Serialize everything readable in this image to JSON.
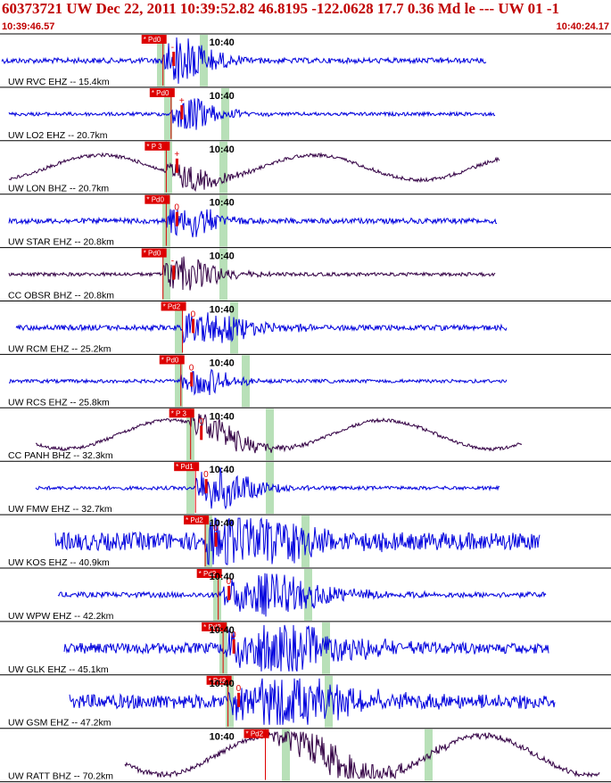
{
  "header": {
    "title": "60373721 UW Dec 22, 2011 10:39:52.82   46.8195 -122.0628 17.7 0.36 Md le --- UW 01   -1",
    "time_start": "10:39:46.57",
    "time_end": "10:40:24.17"
  },
  "colors": {
    "header": "#c00000",
    "short_period": "#0000dd",
    "broadband": "#330044",
    "pick": "#dd0000",
    "window": "#b8e0b8"
  },
  "chart_data": {
    "type": "line",
    "title": "60373721 UW Dec 22, 2011 10:39:52.82   46.8195 -122.0628 17.7 0.36 Md le --- UW 01   -1",
    "x_range": [
      "10:39:46.57",
      "10:40:24.17"
    ],
    "tick_label": "10:40",
    "series": [
      {
        "name": "UW RVC EHZ -- 15.4km",
        "channel": "EHZ",
        "p_label": "Pd0",
        "p_time": "10:39:56.6",
        "polarity": "-"
      },
      {
        "name": "UW LO2 EHZ -- 20.7km",
        "channel": "EHZ",
        "p_label": "Pd0",
        "p_time": "10:39:57.1",
        "polarity": "+"
      },
      {
        "name": "UW LON BHZ -- 20.7km",
        "channel": "BHZ",
        "p_label": "P 3",
        "p_time": "10:39:56.8",
        "polarity": "+"
      },
      {
        "name": "UW STAR EHZ -- 20.8km",
        "channel": "EHZ",
        "p_label": "Pd0",
        "p_time": "10:39:56.8",
        "polarity": "0"
      },
      {
        "name": "CC OBSR BHZ -- 20.8km",
        "channel": "BHZ",
        "p_label": "Pd0",
        "p_time": "10:39:56.6",
        "polarity": "-"
      },
      {
        "name": "UW RCM EHZ -- 25.2km",
        "channel": "EHZ",
        "p_label": "Pd2",
        "p_time": "10:39:57.8",
        "polarity": "0"
      },
      {
        "name": "UW RCS EHZ -- 25.8km",
        "channel": "EHZ",
        "p_label": "Pd0",
        "p_time": "10:39:57.7",
        "polarity": "0"
      },
      {
        "name": "CC PANH BHZ -- 32.3km",
        "channel": "BHZ",
        "p_label": "P 3",
        "p_time": "10:39:58.3",
        "polarity": "0"
      },
      {
        "name": "UW FMW EHZ -- 32.7km",
        "channel": "EHZ",
        "p_label": "Pd1",
        "p_time": "10:39:58.6",
        "polarity": "0"
      },
      {
        "name": "UW KOS EHZ -- 40.9km",
        "channel": "EHZ",
        "p_label": "Pd2",
        "p_time": "10:39:59.2",
        "polarity": "0"
      },
      {
        "name": "UW WPW EHZ -- 42.2km",
        "channel": "EHZ",
        "p_label": "Pd2",
        "p_time": "10:40:00.0",
        "polarity": "0"
      },
      {
        "name": "UW GLK EHZ -- 45.1km",
        "channel": "EHZ",
        "p_label": "Pd2",
        "p_time": "10:40:00.3",
        "polarity": "0"
      },
      {
        "name": "UW GSM EHZ -- 47.2km",
        "channel": "EHZ",
        "p_label": "Pd2",
        "p_time": "10:40:00.6",
        "polarity": "0"
      },
      {
        "name": "UW RATT BHZ -- 70.2km",
        "channel": "BHZ",
        "p_label": "Pd2",
        "p_time": "10:40:02.9",
        "polarity": ""
      }
    ]
  }
}
